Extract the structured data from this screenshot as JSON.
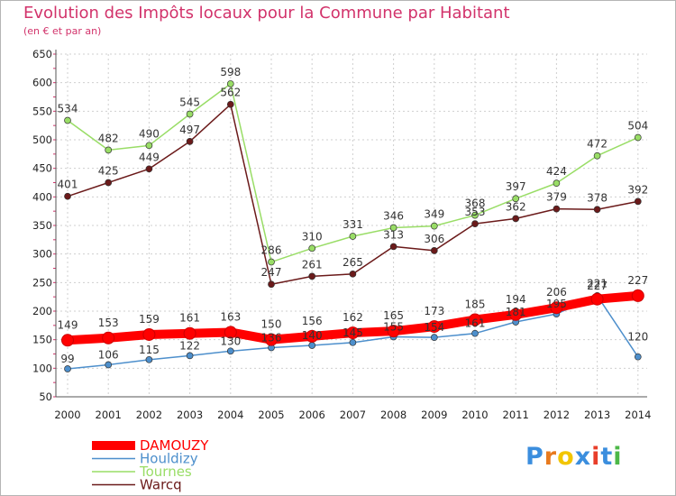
{
  "chart_data": {
    "type": "line",
    "title": "Evolution des Impôts locaux pour la Commune par Habitant",
    "subtitle": "(en € et par an)",
    "x": [
      "2000",
      "2001",
      "2002",
      "2003",
      "2004",
      "2005",
      "2006",
      "2007",
      "2008",
      "2009",
      "2010",
      "2011",
      "2012",
      "2013",
      "2014"
    ],
    "yticks": [
      50,
      100,
      150,
      200,
      250,
      300,
      350,
      400,
      450,
      500,
      550,
      600,
      650
    ],
    "ylim": [
      50,
      650
    ],
    "series": [
      {
        "name": "Houldizy",
        "color": "#4d8fcc",
        "values": [
          99,
          106,
          115,
          122,
          130,
          136,
          140,
          145,
          155,
          154,
          161,
          181,
          195,
          227,
          120
        ]
      },
      {
        "name": "Tournes",
        "color": "#99dd66",
        "values": [
          534,
          482,
          490,
          545,
          598,
          286,
          310,
          331,
          346,
          349,
          368,
          397,
          424,
          472,
          504
        ]
      },
      {
        "name": "Warcq",
        "color": "#6b1a1a",
        "values": [
          401,
          425,
          449,
          497,
          562,
          247,
          261,
          265,
          313,
          306,
          353,
          362,
          379,
          378,
          392
        ]
      },
      {
        "name": "DAMOUZY",
        "color": "#ff0000",
        "values": [
          149,
          153,
          159,
          161,
          163,
          150,
          156,
          162,
          165,
          173,
          185,
          194,
          206,
          221,
          227
        ]
      }
    ],
    "legend": [
      "DAMOUZY",
      "Houldizy",
      "Tournes",
      "Warcq"
    ],
    "legend_position": "bottom-left"
  },
  "logo": {
    "text": "Proxiti",
    "letters": [
      "P",
      "r",
      "o",
      "x",
      "i",
      "t",
      "i"
    ],
    "colors": [
      "#3b8ede",
      "#e87a1e",
      "#f2c500",
      "#3b8ede",
      "#e83e2a",
      "#3b8ede",
      "#4db848"
    ]
  }
}
